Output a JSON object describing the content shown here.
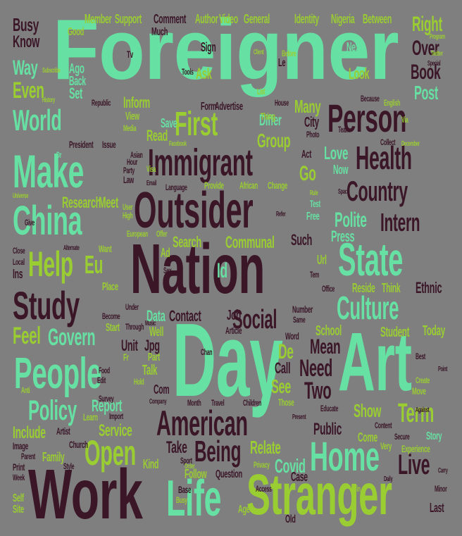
{
  "colors": {
    "background": "#7f7f7f",
    "mint": "#67e0a3",
    "plum": "#3a1627",
    "lime": "#9acd32"
  },
  "words": [
    {
      "text": "Foreigner",
      "color": "mint"
    },
    {
      "text": "Nation",
      "color": "plum"
    },
    {
      "text": "Day",
      "color": "mint"
    },
    {
      "text": "Art",
      "color": "mint"
    },
    {
      "text": "Work",
      "color": "plum"
    },
    {
      "text": "Stranger",
      "color": "lime"
    },
    {
      "text": "Life",
      "color": "mint"
    },
    {
      "text": "Outsider",
      "color": "plum"
    },
    {
      "text": "Immigrant",
      "color": "plum"
    },
    {
      "text": "Person",
      "color": "plum"
    },
    {
      "text": "Health",
      "color": "plum"
    },
    {
      "text": "Country",
      "color": "plum"
    },
    {
      "text": "State",
      "color": "mint"
    },
    {
      "text": "Culture",
      "color": "mint"
    },
    {
      "text": "People",
      "color": "mint"
    },
    {
      "text": "American",
      "color": "plum"
    },
    {
      "text": "Make",
      "color": "mint"
    },
    {
      "text": "China",
      "color": "mint"
    },
    {
      "text": "World",
      "color": "mint"
    },
    {
      "text": "Study",
      "color": "plum"
    },
    {
      "text": "Home",
      "color": "mint"
    },
    {
      "text": "Help",
      "color": "lime"
    },
    {
      "text": "First",
      "color": "lime"
    },
    {
      "text": "Policy",
      "color": "mint"
    },
    {
      "text": "Open",
      "color": "lime"
    },
    {
      "text": "Govern",
      "color": "mint"
    },
    {
      "text": "Social",
      "color": "plum"
    },
    {
      "text": "Intern",
      "color": "plum"
    },
    {
      "text": "Polite",
      "color": "mint"
    },
    {
      "text": "Term",
      "color": "lime"
    },
    {
      "text": "Live",
      "color": "plum"
    },
    {
      "text": "Two",
      "color": "plum"
    },
    {
      "text": "Need",
      "color": "plum"
    },
    {
      "text": "Mean",
      "color": "plum"
    },
    {
      "text": "Being",
      "color": "plum"
    },
    {
      "text": "Feel",
      "color": "lime"
    },
    {
      "text": "Busy",
      "color": "plum"
    },
    {
      "text": "Know",
      "color": "plum"
    },
    {
      "text": "Way",
      "color": "mint"
    },
    {
      "text": "Even",
      "color": "lime"
    },
    {
      "text": "Book",
      "color": "plum"
    },
    {
      "text": "Over",
      "color": "plum"
    },
    {
      "text": "Right",
      "color": "lime"
    },
    {
      "text": "Post",
      "color": "mint"
    },
    {
      "text": "Many",
      "color": "lime"
    },
    {
      "text": "Group",
      "color": "lime"
    },
    {
      "text": "Go",
      "color": "lime"
    },
    {
      "text": "Love",
      "color": "mint"
    },
    {
      "text": "Research",
      "color": "lime"
    },
    {
      "text": "Meet",
      "color": "lime"
    },
    {
      "text": "Communal",
      "color": "lime"
    },
    {
      "text": "Search",
      "color": "lime"
    },
    {
      "text": "Contact",
      "color": "plum"
    },
    {
      "text": "Report",
      "color": "mint"
    },
    {
      "text": "Service",
      "color": "lime"
    },
    {
      "text": "Include",
      "color": "lime"
    },
    {
      "text": "Take",
      "color": "plum"
    },
    {
      "text": "Relate",
      "color": "lime"
    },
    {
      "text": "Covid",
      "color": "mint"
    },
    {
      "text": "Public",
      "color": "plum"
    },
    {
      "text": "Show",
      "color": "lime"
    },
    {
      "text": "Press",
      "color": "mint"
    },
    {
      "text": "Reside",
      "color": "lime"
    },
    {
      "text": "Ethnic",
      "color": "plum"
    },
    {
      "text": "School",
      "color": "lime"
    },
    {
      "text": "Student",
      "color": "lime"
    },
    {
      "text": "Today",
      "color": "lime"
    },
    {
      "text": "See",
      "color": "lime"
    },
    {
      "text": "Call",
      "color": "plum"
    },
    {
      "text": "De",
      "color": "lime"
    },
    {
      "text": "Id",
      "color": "mint"
    },
    {
      "text": "Eu",
      "color": "lime"
    },
    {
      "text": "Unit",
      "color": "plum"
    },
    {
      "text": "Jpg",
      "color": "plum"
    },
    {
      "text": "Data",
      "color": "mint"
    },
    {
      "text": "Job",
      "color": "plum"
    },
    {
      "text": "Such",
      "color": "plum"
    },
    {
      "text": "Kind",
      "color": "lime"
    },
    {
      "text": "Family",
      "color": "lime"
    },
    {
      "text": "Follow",
      "color": "lime"
    },
    {
      "text": "Question",
      "color": "plum"
    },
    {
      "text": "Case",
      "color": "plum"
    },
    {
      "text": "Come",
      "color": "lime"
    },
    {
      "text": "Story",
      "color": "mint"
    },
    {
      "text": "Experience",
      "color": "lime"
    },
    {
      "text": "Read",
      "color": "lime"
    },
    {
      "text": "Save",
      "color": "mint"
    },
    {
      "text": "Ask",
      "color": "lime"
    },
    {
      "text": "Look",
      "color": "lime"
    },
    {
      "text": "Differ",
      "color": "mint"
    },
    {
      "text": "City",
      "color": "plum"
    },
    {
      "text": "Inform",
      "color": "lime"
    },
    {
      "text": "Set",
      "color": "mint"
    },
    {
      "text": "Back",
      "color": "mint"
    },
    {
      "text": "Ago",
      "color": "mint"
    },
    {
      "text": "Sign",
      "color": "plum"
    },
    {
      "text": "Next",
      "color": "mint"
    },
    {
      "text": "Now",
      "color": "mint"
    },
    {
      "text": "Test",
      "color": "mint"
    },
    {
      "text": "Free",
      "color": "mint"
    },
    {
      "text": "Act",
      "color": "plum"
    },
    {
      "text": "Thing",
      "color": "lime"
    },
    {
      "text": "Form",
      "color": "plum"
    },
    {
      "text": "Advertise",
      "color": "plum"
    },
    {
      "text": "Member",
      "color": "lime"
    },
    {
      "text": "Support",
      "color": "lime"
    },
    {
      "text": "Comment",
      "color": "plum"
    },
    {
      "text": "Author",
      "color": "lime"
    },
    {
      "text": "Video",
      "color": "lime"
    },
    {
      "text": "General",
      "color": "lime"
    },
    {
      "text": "Identity",
      "color": "lime"
    },
    {
      "text": "Nigeria",
      "color": "lime"
    },
    {
      "text": "Between",
      "color": "lime"
    },
    {
      "text": "Good",
      "color": "lime"
    },
    {
      "text": "Much",
      "color": "plum"
    },
    {
      "text": "Tv",
      "color": "plum"
    },
    {
      "text": "Program",
      "color": "lime"
    },
    {
      "text": "Twitter",
      "color": "lime"
    },
    {
      "text": "President",
      "color": "plum"
    },
    {
      "text": "Issue",
      "color": "plum"
    },
    {
      "text": "Republic",
      "color": "plum"
    },
    {
      "text": "Subscribe",
      "color": "lime"
    },
    {
      "text": "History",
      "color": "lime"
    },
    {
      "text": "Media",
      "color": "lime"
    },
    {
      "text": "View",
      "color": "lime"
    },
    {
      "text": "House",
      "color": "plum"
    },
    {
      "text": "Because",
      "color": "plum"
    },
    {
      "text": "English",
      "color": "lime"
    },
    {
      "text": "Team",
      "color": "plum"
    },
    {
      "text": "Photo",
      "color": "plum"
    },
    {
      "text": "Collect",
      "color": "plum"
    },
    {
      "text": "December",
      "color": "lime"
    },
    {
      "text": "Asian",
      "color": "plum"
    },
    {
      "text": "Hour",
      "color": "plum"
    },
    {
      "text": "Party",
      "color": "plum"
    },
    {
      "text": "Law",
      "color": "plum"
    },
    {
      "text": "Language",
      "color": "plum"
    },
    {
      "text": "Provide",
      "color": "lime"
    },
    {
      "text": "African",
      "color": "lime"
    },
    {
      "text": "Change",
      "color": "lime"
    },
    {
      "text": "Universe",
      "color": "lime"
    },
    {
      "text": "Give",
      "color": "plum"
    },
    {
      "text": "European",
      "color": "lime"
    },
    {
      "text": "Offer",
      "color": "lime"
    },
    {
      "text": "Alternate",
      "color": "plum"
    },
    {
      "text": "Want",
      "color": "lime"
    },
    {
      "text": "Close",
      "color": "plum"
    },
    {
      "text": "Local",
      "color": "plum"
    },
    {
      "text": "Ins",
      "color": "plum"
    },
    {
      "text": "Place",
      "color": "lime"
    },
    {
      "text": "Become",
      "color": "plum"
    },
    {
      "text": "Under",
      "color": "plum"
    },
    {
      "text": "Start",
      "color": "lime"
    },
    {
      "text": "Through",
      "color": "plum"
    },
    {
      "text": "Music",
      "color": "plum"
    },
    {
      "text": "Well",
      "color": "lime"
    },
    {
      "text": "Article",
      "color": "plum"
    },
    {
      "text": "Number",
      "color": "plum"
    },
    {
      "text": "Same",
      "color": "plum"
    },
    {
      "text": "Word",
      "color": "plum"
    },
    {
      "text": "Office",
      "color": "plum"
    },
    {
      "text": "Think",
      "color": "lime"
    },
    {
      "text": "Url",
      "color": "lime"
    },
    {
      "text": "Sex",
      "color": "plum"
    },
    {
      "text": "Food",
      "color": "plum"
    },
    {
      "text": "Edit",
      "color": "plum"
    },
    {
      "text": "Hold",
      "color": "lime"
    },
    {
      "text": "Talk",
      "color": "lime"
    },
    {
      "text": "Part",
      "color": "lime"
    },
    {
      "text": "Com",
      "color": "plum"
    },
    {
      "text": "Month",
      "color": "plum"
    },
    {
      "text": "Travel",
      "color": "plum"
    },
    {
      "text": "Children",
      "color": "plum"
    },
    {
      "text": "Those",
      "color": "lime"
    },
    {
      "text": "Educate",
      "color": "plum"
    },
    {
      "text": "Content",
      "color": "plum"
    },
    {
      "text": "Secure",
      "color": "plum"
    },
    {
      "text": "Against",
      "color": "plum"
    },
    {
      "text": "Move",
      "color": "lime"
    },
    {
      "text": "Create",
      "color": "lime"
    },
    {
      "text": "Best",
      "color": "plum"
    },
    {
      "text": "Learn",
      "color": "lime"
    },
    {
      "text": "Import",
      "color": "plum"
    },
    {
      "text": "Survey",
      "color": "plum"
    },
    {
      "text": "Company",
      "color": "plum"
    },
    {
      "text": "Artist",
      "color": "plum"
    },
    {
      "text": "Church",
      "color": "plum"
    },
    {
      "text": "Image",
      "color": "plum"
    },
    {
      "text": "Print",
      "color": "plum"
    },
    {
      "text": "Parent",
      "color": "plum"
    },
    {
      "text": "Style",
      "color": "plum"
    },
    {
      "text": "Week",
      "color": "plum"
    },
    {
      "text": "Self",
      "color": "lime"
    },
    {
      "text": "Site",
      "color": "lime"
    },
    {
      "text": "Anti",
      "color": "lime"
    },
    {
      "text": "Sport",
      "color": "plum"
    },
    {
      "text": "Privacy",
      "color": "lime"
    },
    {
      "text": "Access",
      "color": "plum"
    },
    {
      "text": "Present",
      "color": "plum"
    },
    {
      "text": "Very",
      "color": "lime"
    },
    {
      "text": "Minor",
      "color": "plum"
    },
    {
      "text": "Last",
      "color": "plum"
    },
    {
      "text": "Age",
      "color": "lime"
    },
    {
      "text": "Base",
      "color": "plum"
    },
    {
      "text": "Old",
      "color": "plum"
    },
    {
      "text": "Busy",
      "color": "lime"
    },
    {
      "text": "Order",
      "color": "lime"
    },
    {
      "text": "Special",
      "color": "plum"
    },
    {
      "text": "Space",
      "color": "plum"
    },
    {
      "text": "Client",
      "color": "lime"
    },
    {
      "text": "Before",
      "color": "lime"
    },
    {
      "text": "Tools",
      "color": "plum"
    },
    {
      "text": "List",
      "color": "lime"
    },
    {
      "text": "High",
      "color": "lime"
    },
    {
      "text": "User",
      "color": "lime"
    },
    {
      "text": "Email",
      "color": "plum"
    },
    {
      "text": "Visa",
      "color": "lime"
    },
    {
      "text": "Facebook",
      "color": "lime"
    },
    {
      "text": "Rule",
      "color": "lime"
    },
    {
      "text": "Refer",
      "color": "plum"
    },
    {
      "text": "Point",
      "color": "plum"
    },
    {
      "text": "Daily",
      "color": "plum"
    },
    {
      "text": "Carry",
      "color": "plum"
    },
    {
      "text": "Dr",
      "color": "mint"
    },
    {
      "text": "Ad",
      "color": "lime"
    },
    {
      "text": "Le",
      "color": "plum"
    },
    {
      "text": "Fr",
      "color": "lime"
    },
    {
      "text": "Chan",
      "color": "plum"
    },
    {
      "text": "Win",
      "color": "lime"
    },
    {
      "text": "Via",
      "color": "lime"
    },
    {
      "text": "Tem",
      "color": "plum"
    }
  ]
}
